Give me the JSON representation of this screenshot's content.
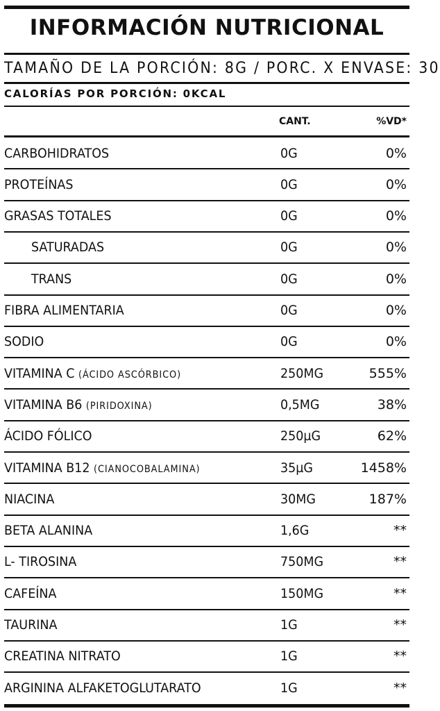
{
  "label": {
    "title": "INFORMACIÓN NUTRICIONAL",
    "serving_info": "TAMAÑO DE LA PORCIÓN: 8G / PORC. X ENVASE: 30",
    "calories_line": "CALORÍAS POR PORCIÓN: 0KCAL",
    "headers": {
      "amount": "CANT.",
      "daily_value": "%VD*"
    }
  },
  "nutrients": [
    {
      "name": "CARBOHIDRATOS",
      "note": "",
      "amount": "0G",
      "daily_value": "0%",
      "indent": false
    },
    {
      "name": "PROTEÍNAS",
      "note": "",
      "amount": "0G",
      "daily_value": "0%",
      "indent": false
    },
    {
      "name": "GRASAS TOTALES",
      "note": "",
      "amount": "0G",
      "daily_value": "0%",
      "indent": false
    },
    {
      "name": "SATURADAS",
      "note": "",
      "amount": "0G",
      "daily_value": "0%",
      "indent": true
    },
    {
      "name": "TRANS",
      "note": "",
      "amount": "0G",
      "daily_value": "0%",
      "indent": true
    },
    {
      "name": "FIBRA ALIMENTARIA",
      "note": "",
      "amount": "0G",
      "daily_value": "0%",
      "indent": false
    },
    {
      "name": "SODIO",
      "note": "",
      "amount": "0G",
      "daily_value": "0%",
      "indent": false
    },
    {
      "name": "VITAMINA C",
      "note": "(ÁCIDO ASCÓRBICO)",
      "amount": "250MG",
      "daily_value": "555%",
      "indent": false
    },
    {
      "name": "VITAMINA B6",
      "note": "(PIRIDOXINA)",
      "amount": "0,5MG",
      "daily_value": "38%",
      "indent": false
    },
    {
      "name": "ÁCIDO FÓLICO",
      "note": "",
      "amount": "250µG",
      "daily_value": "62%",
      "indent": false
    },
    {
      "name": "VITAMINA B12",
      "note": "(CIANOCOBALAMINA)",
      "amount": "35µG",
      "daily_value": "1458%",
      "indent": false
    },
    {
      "name": "NIACINA",
      "note": "",
      "amount": "30MG",
      "daily_value": "187%",
      "indent": false
    },
    {
      "name": "BETA ALANINA",
      "note": "",
      "amount": "1,6G",
      "daily_value": "**",
      "indent": false
    },
    {
      "name": "L- TIROSINA",
      "note": "",
      "amount": "750MG",
      "daily_value": "**",
      "indent": false
    },
    {
      "name": "CAFEÍNA",
      "note": "",
      "amount": "150MG",
      "daily_value": "**",
      "indent": false
    },
    {
      "name": "TAURINA",
      "note": "",
      "amount": "1G",
      "daily_value": "**",
      "indent": false
    },
    {
      "name": "CREATINA NITRATO",
      "note": "",
      "amount": "1G",
      "daily_value": "**",
      "indent": false
    },
    {
      "name": "ARGININA ALFAKETOGLUTARATO",
      "note": "",
      "amount": "1G",
      "daily_value": "**",
      "indent": false
    }
  ]
}
